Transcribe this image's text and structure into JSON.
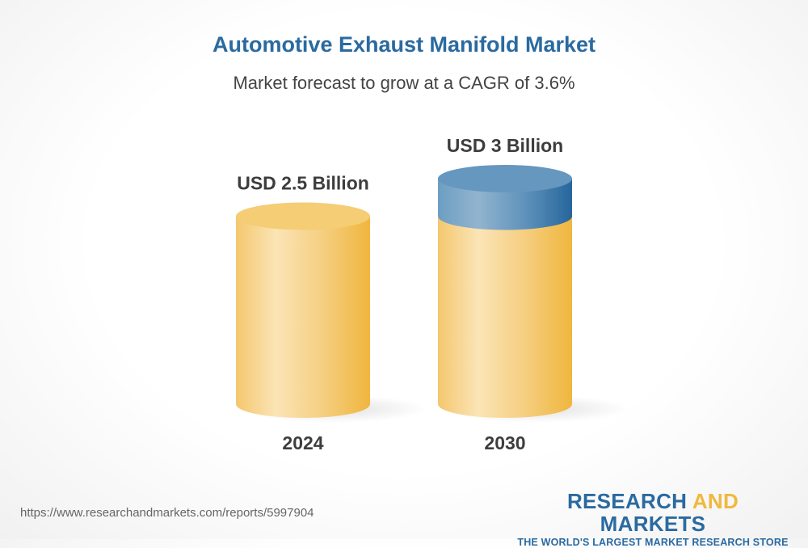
{
  "title": "Automotive Exhaust Manifold Market",
  "subtitle": "Market forecast to grow at a CAGR of 3.6%",
  "chart_data": {
    "type": "bar",
    "style": "3d-cylinder",
    "categories": [
      "2024",
      "2030"
    ],
    "values": [
      2.5,
      3
    ],
    "value_labels": [
      "USD 2.5 Billion",
      "USD 3 Billion"
    ],
    "unit": "USD Billion",
    "colors": {
      "base": "#f3c160",
      "growth": "#3f7fb0"
    }
  },
  "footer": {
    "url": "https://www.researchandmarkets.com/reports/5997904",
    "logo_part1": "RESEARCH ",
    "logo_part2": "AND",
    "logo_part3": " MARKETS",
    "tagline": "THE WORLD'S LARGEST MARKET RESEARCH STORE"
  }
}
